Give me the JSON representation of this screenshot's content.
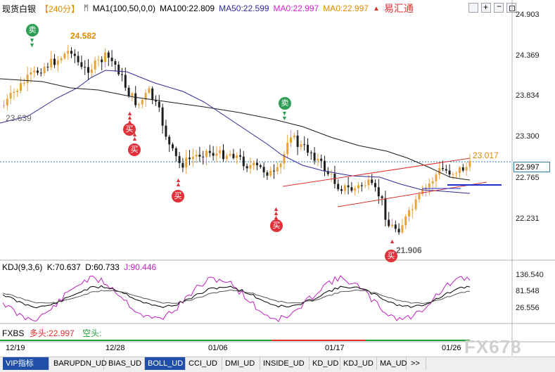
{
  "header": {
    "symbol": "现货白银",
    "period": "【240分】",
    "ma_params": "MA1(100,50,0,0)",
    "ma100": "MA100:22.809",
    "ma50": "MA50:22.599",
    "ma0a": "MA0:22.997",
    "ma0b": "MA0:22.997",
    "brand": "易汇通"
  },
  "price_axis": {
    "ticks": [
      "24.903",
      "24.369",
      "23.834",
      "23.300",
      "22.765",
      "22.231"
    ],
    "current": "22.997"
  },
  "annotations": {
    "high": "24.582",
    "start": "23.639",
    "low": "21.906",
    "recent": "23.017",
    "sell": "卖",
    "buy": "买"
  },
  "kdj": {
    "name": "KDJ(9,3,6)",
    "k": "K:70.637",
    "d": "D:60.733",
    "j": "J:90.446",
    "ticks": [
      "136.540",
      "81.548",
      "26.556"
    ]
  },
  "fxbs": {
    "name": "FXBS",
    "long": "多头:22.997",
    "short": "空头:"
  },
  "dates": [
    "12/19",
    "12/28",
    "01/06",
    "01/17",
    "01/26"
  ],
  "watermark": "FX678",
  "tabs": [
    "VIP指标",
    "BARUPDN_UD",
    "BIAS_UD",
    "BOLL_UD",
    "CCI_UD",
    "DMI_UD",
    "INSIDE_UD",
    "KD_UD",
    "KDJ_UD",
    "MA_UD",
    ">>"
  ],
  "colors": {
    "up": "#e8a33d",
    "down": "#1e1e1e",
    "ma100": "#1b1b1b",
    "ma50": "#2b2b9a",
    "buy": "#e0313b",
    "sell": "#2f9e55",
    "channel": "#e03030",
    "kdj_k": "#000000",
    "kdj_d": "#555555",
    "kdj_j": "#c020c0"
  }
}
